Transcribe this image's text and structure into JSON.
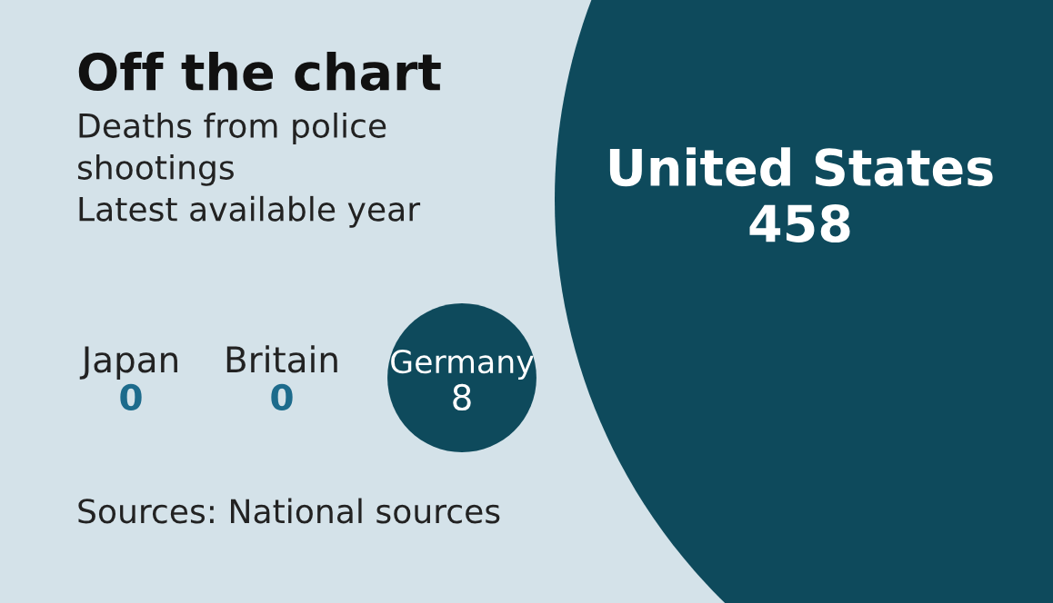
{
  "chart_data": {
    "type": "other",
    "title": "Off the chart",
    "subtitle": "Deaths from police\nshootings\nLatest available year",
    "categories": [
      "Japan",
      "Britain",
      "Germany",
      "United States"
    ],
    "values": [
      0,
      0,
      8,
      458
    ],
    "colors": [
      "#1d6b8c",
      "#1d6b8c",
      "#0e4a5c",
      "#0e4a5c"
    ],
    "data_labels": true,
    "annotations": [
      "Sources: National sources"
    ]
  }
}
